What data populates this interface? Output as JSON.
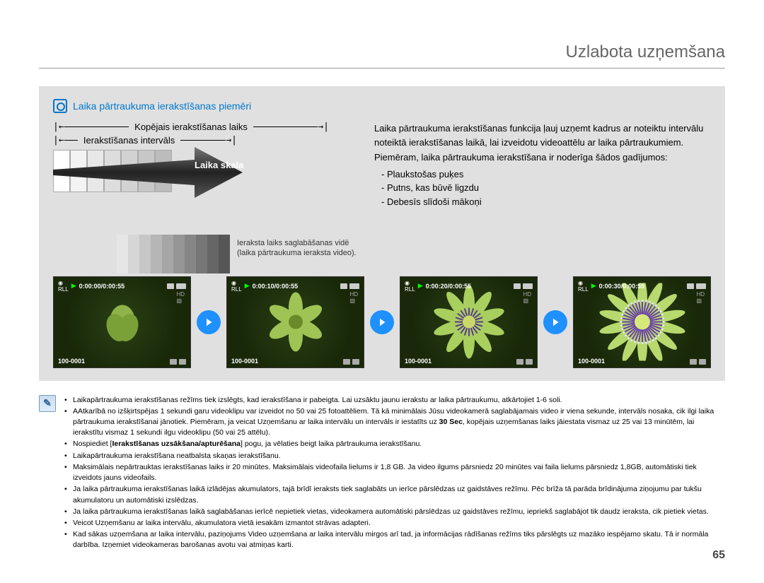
{
  "page": {
    "title": "Uzlabota uzņemšana",
    "number": "65"
  },
  "box": {
    "title": "Laika pārtraukuma ierakstīšanas piemēri",
    "scale_label_total": "Kopējais ierakstīšanas laiks",
    "scale_label_interval": "Ierakstīšanas intervāls",
    "arrow_text": "Laika skala",
    "note": "Ieraksta laiks saglabāšanas vidē (laika pārtraukuma ieraksta video).",
    "bars_gray": [
      "#ffffff",
      "#f3f3f3",
      "#e8e8e8",
      "#dddddd",
      "#d2d2d2",
      "#c7c7c7",
      "#bcbcbc"
    ],
    "gradient_bars": [
      "#e6e6e6",
      "#d6d6d6",
      "#c6c6c6",
      "#b6b6b6",
      "#a6a6a6",
      "#969696",
      "#868686",
      "#767676",
      "#666666",
      "#565656"
    ]
  },
  "desc": {
    "p1": "Laika pārtraukuma ierakstīšanas funkcija ļauj uzņemt kadrus ar noteiktu intervālu noteiktā ierakstīšanas laikā, lai izveidotu videoattēlu ar laika pārtraukumiem.",
    "p2": "Piemēram, laika pārtraukuma ierakstīšana ir noderīga šādos gadījumos:",
    "items": [
      "Plaukstošas puķes",
      "Putns, kas būvē ligzdu",
      "Debesīs slīdoši mākoņi"
    ]
  },
  "thumbs": [
    {
      "tc": "0:00:00/0:00:55",
      "bl": "100-0001",
      "petals": 0
    },
    {
      "tc": "0:00:10/0:00:55",
      "bl": "100-0001",
      "petals": 5
    },
    {
      "tc": "0:00:20/0:00:55",
      "bl": "100-0001",
      "petals": 8
    },
    {
      "tc": "0:00:30/0:00:55",
      "bl": "100-0001",
      "petals": 16
    }
  ],
  "notes": {
    "items": [
      "Laikapārtraukuma ierakstīšanas režīms tiek izslēgts, kad ierakstīšana ir pabeigta. Lai uzsāktu jaunu ierakstu ar laika pārtraukumu, atkārtojiet 1-6 soli.",
      "AAtkarībā no izšķirtspējas 1 sekundi garu videoklipu var izveidot no 50 vai 25 fotoattēliem. Tā kā minimālais Jūsu videokamerā saglabājamais video ir viena sekunde, intervāls nosaka, cik ilgi laika pārtraukuma ierakstīšanai jānotiek. Piemēram, ja veicat Uzņemšanu ar laika intervālu un intervāls ir iestatīts uz <b>30 Sec</b>, kopējais uzņemšanas laiks jāiestata vismaz uz 25 vai 13 minūtēm, lai ierakstītu vismaz 1 sekundi ilgu videoklipu (50 vai 25 attēlu).",
      "Nospiediet [<b>Ierakstīšanas uzsākšana/apturēšana</b>] pogu, ja vēlaties beigt laika pārtraukuma ierakstīšanu.",
      "Laikapārtraukuma ierakstīšana neatbalsta skaņas ierakstīšanu.",
      "Maksimālais nepārtrauktas ierakstīšanas laiks ir 20 minūtes. Maksimālais videofaila lielums ir 1,8 GB. Ja video ilgums pārsniedz 20 minūtes vai faila lielums pārsniedz 1,8GB, automātiski tiek izveidots jauns videofails.",
      "Ja laika pārtraukuma ierakstīšanas laikā izlādējas akumulators, tajā brīdī ieraksts tiek saglabāts un ierīce pārslēdzas uz gaidstāves režīmu. Pēc brīža tā parāda brīdinājuma ziņojumu par tukšu akumulatoru un automātiski izslēdzas.",
      "Ja laika pārtraukuma ierakstīšanas laikā saglabāšanas ierīcē nepietiek vietas, videokamera automātiski pārslēdzas uz gaidstāves režīmu, iepriekš saglabājot tik daudz ieraksta, cik pietiek vietas.",
      "Veicot Uzņemšanu ar laika intervālu, akumulatora vietā iesakām izmantot strāvas adapteri.",
      "Kad sākas uzņemšana ar laika intervālu, paziņojums Video uzņemšana ar laika intervālu mirgos arī tad, ja informācijas rādīšanas režīms tiks pārslēgts uz mazāko iespējamo skatu. Tā ir normāla darbība. Izņemiet videokameras barošanas avotu vai atmiņas karti."
    ]
  },
  "colors": {
    "title": "#666666",
    "link": "#0077cc",
    "arrow_circle": "#1e90ff"
  }
}
